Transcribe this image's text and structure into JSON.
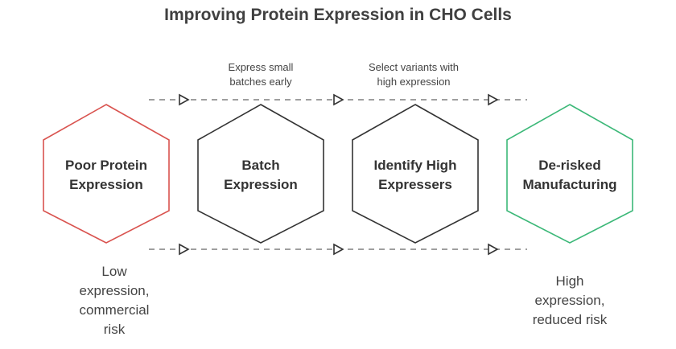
{
  "title": "Improving Protein Expression in CHO Cells",
  "colors": {
    "problem": "#d9534f",
    "neutral": "#333333",
    "solution": "#3cb878",
    "connector": "#555555"
  },
  "stages": [
    {
      "line1": "Poor Protein",
      "line2": "Expression",
      "role": "problem"
    },
    {
      "line1": "Batch",
      "line2": "Expression",
      "role": "neutral"
    },
    {
      "line1": "Identify High",
      "line2": "Expressers",
      "role": "neutral"
    },
    {
      "line1": "De-risked",
      "line2": "Manufacturing",
      "role": "solution"
    }
  ],
  "steps": [
    {
      "line1": "Express small",
      "line2": "batches early"
    },
    {
      "line1": "Select variants with",
      "line2": "high expression"
    }
  ],
  "outcomes": {
    "start": {
      "line1": "Low",
      "line2": "expression,",
      "line3": "commercial",
      "line4": "risk"
    },
    "end": {
      "line1": "High",
      "line2": "expression,",
      "line3": "reduced risk"
    }
  }
}
